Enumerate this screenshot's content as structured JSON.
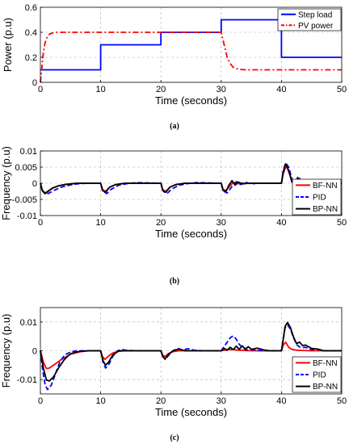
{
  "captions": [
    "(a)",
    "(b)",
    "(c)"
  ],
  "chart_data": [
    {
      "type": "line",
      "xlabel": "Time (seconds)",
      "ylabel": "Power (p.u)",
      "xlim": [
        0,
        50
      ],
      "ylim": [
        0,
        0.6
      ],
      "xticks": [
        "0",
        "10",
        "20",
        "30",
        "40",
        "50"
      ],
      "yticks": [
        "0",
        "0.2",
        "0.4",
        "0.6"
      ],
      "grid": true,
      "legend_position": "top-right",
      "series": [
        {
          "name": "Step load",
          "color": "#0000ff",
          "dash": "solid",
          "x": [
            0,
            10,
            10,
            20,
            20,
            30,
            30,
            40,
            40,
            50
          ],
          "y": [
            0.1,
            0.1,
            0.3,
            0.3,
            0.4,
            0.4,
            0.5,
            0.5,
            0.2,
            0.2
          ]
        },
        {
          "name": "PV power",
          "color": "#ff0000",
          "dash": "dashdot",
          "x": [
            0,
            0.25,
            0.5,
            0.75,
            1,
            1.5,
            2,
            2.5,
            3,
            30,
            30.5,
            31,
            31.5,
            32,
            32.5,
            33,
            34,
            35,
            50
          ],
          "y": [
            0,
            0.12,
            0.24,
            0.31,
            0.35,
            0.385,
            0.395,
            0.4,
            0.4,
            0.4,
            0.3,
            0.2,
            0.15,
            0.12,
            0.11,
            0.104,
            0.1,
            0.1,
            0.1
          ]
        }
      ]
    },
    {
      "type": "line",
      "xlabel": "Time (seconds)",
      "ylabel": "Frequency  (p.u)",
      "xlim": [
        0,
        50
      ],
      "ylim": [
        -0.01,
        0.01
      ],
      "xticks": [
        "0",
        "10",
        "20",
        "30",
        "40",
        "50"
      ],
      "yticks": [
        "-0.01",
        "-0.005",
        "0",
        "0.005",
        "0.01"
      ],
      "grid": true,
      "legend_position": "bottom-right",
      "series": [
        {
          "name": "BF-NN",
          "color": "#ff0000",
          "dash": "solid",
          "x": [
            0,
            0.3,
            0.7,
            1.2,
            2,
            3,
            4,
            5,
            6,
            10,
            10.3,
            10.8,
            11.5,
            12.5,
            14,
            20,
            20.3,
            20.8,
            21.5,
            22.5,
            24,
            30,
            30.3,
            30.8,
            31.5,
            32,
            32.5,
            33,
            34,
            40,
            40.3,
            40.8,
            41.3,
            41.8,
            42.3,
            42.8,
            43.3,
            44,
            45,
            50
          ],
          "y": [
            0,
            -0.002,
            -0.003,
            -0.0025,
            -0.0015,
            -0.0008,
            -0.0004,
            -0.0002,
            0,
            0,
            -0.002,
            -0.0025,
            -0.0012,
            -0.0004,
            0,
            0,
            -0.002,
            -0.0025,
            -0.0012,
            -0.0004,
            0,
            0,
            -0.002,
            -0.0022,
            -0.0008,
            0.0003,
            -0.0003,
            0.0001,
            0,
            0,
            0.003,
            0.0055,
            0.003,
            0.0005,
            0.001,
            -0.0002,
            0.0005,
            0,
            0.0002,
            0
          ]
        },
        {
          "name": "PID",
          "color": "#0000ff",
          "dash": "dashed",
          "x": [
            0,
            0.4,
            0.9,
            1.5,
            2.5,
            3.5,
            5,
            6.5,
            8,
            10,
            10.4,
            11,
            11.8,
            13,
            14.5,
            16,
            20,
            20.4,
            21,
            21.8,
            23,
            24.5,
            26,
            30,
            30.4,
            31,
            31.8,
            32.5,
            33.2,
            34,
            35,
            36,
            40,
            40.3,
            40.7,
            41.2,
            41.8,
            42.4,
            43,
            43.6,
            44.3,
            45,
            46,
            47,
            50
          ],
          "y": [
            0,
            -0.0025,
            -0.0035,
            -0.003,
            -0.002,
            -0.0012,
            -0.0005,
            -0.0001,
            0,
            0,
            -0.0025,
            -0.0032,
            -0.0018,
            -0.0006,
            -0.0001,
            0.0002,
            0,
            -0.0025,
            -0.0032,
            -0.0018,
            -0.0006,
            -0.0001,
            0.0002,
            0,
            -0.0025,
            -0.003,
            -0.001,
            0.0005,
            -0.0004,
            0.0003,
            -0.0002,
            0,
            0,
            0.004,
            0.0063,
            0.005,
            0.001,
            -0.0008,
            0.0015,
            -0.0005,
            0.0008,
            -0.0002,
            0.0003,
            0,
            0
          ]
        },
        {
          "name": "BP-NN",
          "color": "#000000",
          "dash": "solid",
          "x": [
            0,
            0.3,
            0.8,
            1.3,
            2,
            3,
            4,
            5,
            6,
            10,
            10.3,
            10.8,
            11.5,
            12.5,
            14,
            20,
            20.3,
            20.8,
            21.5,
            22.5,
            24,
            30,
            30.3,
            30.8,
            31.3,
            31.8,
            32.3,
            32.8,
            33.5,
            34.5,
            40,
            40.3,
            40.7,
            41.2,
            41.7,
            42.2,
            42.7,
            43.2,
            43.8,
            44.5,
            45.5,
            46.5,
            50
          ],
          "y": [
            0,
            -0.0022,
            -0.0032,
            -0.0025,
            -0.0015,
            -0.0008,
            -0.0004,
            -0.0002,
            0,
            0,
            -0.0022,
            -0.0028,
            -0.0012,
            -0.0004,
            0,
            0,
            -0.0022,
            -0.0028,
            -0.0012,
            -0.0004,
            0,
            0,
            -0.0022,
            -0.0025,
            -0.0005,
            0.0008,
            -0.0006,
            0.0004,
            -0.0002,
            0,
            0,
            0.0035,
            0.006,
            0.004,
            0.0005,
            -0.0005,
            0.0018,
            -0.0004,
            0.001,
            -0.0002,
            0.0004,
            0,
            0
          ]
        }
      ]
    },
    {
      "type": "line",
      "xlabel": "Time (seconds)",
      "ylabel": "Frequency  (p.u)",
      "xlim": [
        0,
        50
      ],
      "ylim": [
        -0.015,
        0.015
      ],
      "xticks": [
        "0",
        "10",
        "20",
        "30",
        "40",
        "50"
      ],
      "yticks": [
        "-0.01",
        "0",
        "0.01"
      ],
      "ytick_values": [
        -0.01,
        0,
        0.01
      ],
      "grid": true,
      "legend_position": "bottom-right",
      "series": [
        {
          "name": "BF-NN",
          "color": "#ff0000",
          "dash": "solid",
          "x": [
            0,
            0.5,
            1,
            1.5,
            2.5,
            3.5,
            5,
            6.5,
            8,
            10,
            10.3,
            10.7,
            11.2,
            12,
            13,
            14,
            20,
            20.3,
            20.7,
            21.2,
            22,
            23,
            30,
            31,
            32,
            33,
            35,
            40,
            40.3,
            40.7,
            41.2,
            41.7,
            42.5,
            43.5,
            45,
            50
          ],
          "y": [
            0,
            -0.004,
            -0.0062,
            -0.006,
            -0.0045,
            -0.003,
            -0.0012,
            -0.0004,
            0,
            0,
            -0.002,
            -0.003,
            -0.002,
            -0.0008,
            -0.0002,
            0,
            0,
            -0.0015,
            -0.002,
            -0.001,
            -0.0003,
            0,
            0,
            0.0004,
            0.0004,
            0.0002,
            0,
            0,
            0.002,
            0.003,
            0.0012,
            0.0005,
            0.0002,
            0.0001,
            0,
            0
          ]
        },
        {
          "name": "PID",
          "color": "#0000ff",
          "dash": "dashed",
          "x": [
            0,
            0.4,
            0.8,
            1.2,
            1.8,
            2.5,
            3.2,
            4,
            5,
            6,
            7,
            10,
            10.4,
            10.8,
            11.3,
            12,
            12.8,
            13.6,
            14.5,
            16,
            20,
            20.3,
            20.7,
            21.3,
            22,
            22.8,
            23.5,
            24.5,
            25.5,
            27,
            30,
            30.5,
            31,
            31.5,
            32,
            32.5,
            33,
            33.6,
            34.3,
            35,
            36,
            37,
            40,
            40.3,
            40.6,
            41,
            41.5,
            42,
            42.6,
            43.2,
            44,
            45,
            46,
            47,
            50
          ],
          "y": [
            0,
            -0.007,
            -0.012,
            -0.0135,
            -0.012,
            -0.008,
            -0.004,
            -0.0015,
            -0.0004,
            0,
            0,
            0,
            -0.004,
            -0.006,
            -0.005,
            -0.002,
            0,
            0.0004,
            0.0001,
            0,
            0,
            -0.002,
            -0.003,
            -0.0015,
            0,
            0.0008,
            0.0003,
            0.0007,
            0.0002,
            0,
            0,
            0.0015,
            0.003,
            0.0045,
            0.0052,
            0.004,
            0.0022,
            0.001,
            0.0002,
            0.0005,
            0.0001,
            0,
            0,
            0.004,
            0.008,
            0.009,
            0.0075,
            0.0045,
            0.002,
            0.001,
            0.0012,
            0.0004,
            0.0005,
            0,
            0
          ]
        },
        {
          "name": "BP-NN",
          "color": "#000000",
          "dash": "solid",
          "x": [
            0,
            0.5,
            1,
            1.5,
            2.2,
            3,
            4,
            5,
            6.5,
            8,
            10,
            10.4,
            10.8,
            11.3,
            12,
            13,
            14,
            20,
            20.3,
            20.7,
            21.3,
            22,
            23,
            24,
            30,
            30.5,
            31,
            31.5,
            32,
            32.5,
            33,
            33.5,
            34,
            34.5,
            35,
            36,
            37,
            38,
            40,
            40.3,
            40.6,
            41,
            41.5,
            42,
            42.5,
            43,
            43.5,
            44,
            45,
            46,
            47,
            50
          ],
          "y": [
            0,
            -0.006,
            -0.0102,
            -0.0105,
            -0.009,
            -0.006,
            -0.003,
            -0.001,
            -0.0002,
            0,
            0,
            -0.0035,
            -0.005,
            -0.004,
            -0.0015,
            0,
            0,
            0,
            -0.002,
            -0.0028,
            -0.0012,
            0,
            0.0006,
            0,
            0,
            0.0008,
            0.0002,
            0.0012,
            0.0004,
            0.0016,
            0.0005,
            0.0017,
            0.0006,
            0.0014,
            0.0005,
            0.0009,
            0.0003,
            0,
            0,
            0.004,
            0.0085,
            0.0098,
            0.008,
            0.0048,
            0.0025,
            0.003,
            0.0018,
            0.002,
            0.0008,
            0.0006,
            0,
            0
          ]
        }
      ]
    }
  ]
}
